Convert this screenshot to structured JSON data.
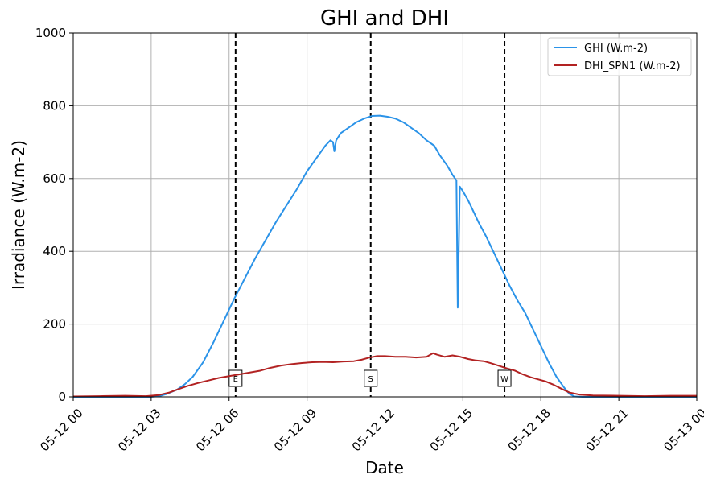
{
  "chart_data": {
    "type": "line",
    "title": "GHI and DHI",
    "xlabel": "Date",
    "ylabel": "Irradiance (W.m-2)",
    "xlim": [
      "05-12 00:00",
      "05-13 00:00"
    ],
    "ylim": [
      0,
      1000
    ],
    "grid": true,
    "legend_position": "top-right",
    "x_ticks": [
      {
        "hour": 0,
        "label": "05-12 00"
      },
      {
        "hour": 3,
        "label": "05-12 03"
      },
      {
        "hour": 6,
        "label": "05-12 06"
      },
      {
        "hour": 9,
        "label": "05-12 09"
      },
      {
        "hour": 12,
        "label": "05-12 12"
      },
      {
        "hour": 15,
        "label": "05-12 15"
      },
      {
        "hour": 18,
        "label": "05-12 18"
      },
      {
        "hour": 21,
        "label": "05-12 21"
      },
      {
        "hour": 24,
        "label": "05-13 00"
      }
    ],
    "y_ticks": [
      0,
      200,
      400,
      600,
      800,
      1000
    ],
    "series": [
      {
        "name": "GHI (W.m-2)",
        "color": "#2b93e8",
        "points": [
          [
            0,
            0
          ],
          [
            3.0,
            0
          ],
          [
            3.3,
            2
          ],
          [
            3.6,
            8
          ],
          [
            4.0,
            20
          ],
          [
            4.3,
            35
          ],
          [
            4.6,
            55
          ],
          [
            5.0,
            95
          ],
          [
            5.4,
            150
          ],
          [
            5.8,
            210
          ],
          [
            6.2,
            270
          ],
          [
            6.6,
            325
          ],
          [
            7.0,
            380
          ],
          [
            7.4,
            430
          ],
          [
            7.8,
            480
          ],
          [
            8.2,
            525
          ],
          [
            8.6,
            570
          ],
          [
            9.0,
            620
          ],
          [
            9.4,
            660
          ],
          [
            9.7,
            690
          ],
          [
            9.9,
            705
          ],
          [
            10.0,
            700
          ],
          [
            10.05,
            675
          ],
          [
            10.12,
            705
          ],
          [
            10.3,
            725
          ],
          [
            10.6,
            740
          ],
          [
            10.9,
            755
          ],
          [
            11.2,
            765
          ],
          [
            11.5,
            772
          ],
          [
            11.8,
            773
          ],
          [
            12.1,
            770
          ],
          [
            12.4,
            765
          ],
          [
            12.7,
            755
          ],
          [
            13.0,
            740
          ],
          [
            13.3,
            725
          ],
          [
            13.6,
            705
          ],
          [
            13.9,
            690
          ],
          [
            14.1,
            665
          ],
          [
            14.4,
            635
          ],
          [
            14.6,
            610
          ],
          [
            14.75,
            595
          ],
          [
            14.8,
            245
          ],
          [
            14.88,
            578
          ],
          [
            15.0,
            565
          ],
          [
            15.2,
            540
          ],
          [
            15.4,
            510
          ],
          [
            15.6,
            480
          ],
          [
            15.9,
            440
          ],
          [
            16.2,
            395
          ],
          [
            16.5,
            350
          ],
          [
            16.8,
            305
          ],
          [
            17.1,
            265
          ],
          [
            17.4,
            230
          ],
          [
            17.7,
            185
          ],
          [
            18.0,
            140
          ],
          [
            18.3,
            95
          ],
          [
            18.6,
            55
          ],
          [
            18.9,
            25
          ],
          [
            19.1,
            8
          ],
          [
            19.3,
            1
          ],
          [
            19.6,
            0
          ],
          [
            24,
            0
          ]
        ]
      },
      {
        "name": "DHI_SPN1 (W.m-2)",
        "color": "#b22222",
        "points": [
          [
            0,
            1
          ],
          [
            1.0,
            2
          ],
          [
            2.0,
            3
          ],
          [
            2.8,
            2
          ],
          [
            3.3,
            5
          ],
          [
            3.7,
            12
          ],
          [
            4.0,
            20
          ],
          [
            4.4,
            30
          ],
          [
            4.8,
            38
          ],
          [
            5.2,
            45
          ],
          [
            5.6,
            52
          ],
          [
            6.0,
            57
          ],
          [
            6.4,
            62
          ],
          [
            6.8,
            67
          ],
          [
            7.2,
            72
          ],
          [
            7.6,
            80
          ],
          [
            8.0,
            86
          ],
          [
            8.4,
            90
          ],
          [
            8.8,
            93
          ],
          [
            9.2,
            95
          ],
          [
            9.6,
            96
          ],
          [
            10.0,
            95
          ],
          [
            10.4,
            97
          ],
          [
            10.8,
            98
          ],
          [
            11.1,
            102
          ],
          [
            11.4,
            108
          ],
          [
            11.7,
            112
          ],
          [
            12.0,
            112
          ],
          [
            12.4,
            110
          ],
          [
            12.8,
            110
          ],
          [
            13.2,
            108
          ],
          [
            13.6,
            110
          ],
          [
            13.85,
            120
          ],
          [
            14.0,
            116
          ],
          [
            14.3,
            110
          ],
          [
            14.6,
            114
          ],
          [
            14.9,
            110
          ],
          [
            15.2,
            104
          ],
          [
            15.5,
            100
          ],
          [
            15.8,
            98
          ],
          [
            16.1,
            92
          ],
          [
            16.4,
            85
          ],
          [
            16.7,
            78
          ],
          [
            17.0,
            72
          ],
          [
            17.3,
            62
          ],
          [
            17.6,
            54
          ],
          [
            17.9,
            48
          ],
          [
            18.2,
            42
          ],
          [
            18.5,
            33
          ],
          [
            18.8,
            22
          ],
          [
            19.1,
            12
          ],
          [
            19.5,
            6
          ],
          [
            20.0,
            4
          ],
          [
            21.0,
            3
          ],
          [
            22.0,
            2
          ],
          [
            23.0,
            3
          ],
          [
            24,
            3
          ]
        ]
      }
    ],
    "markers": [
      {
        "hour": 6.25,
        "label": "E"
      },
      {
        "hour": 11.45,
        "label": "S"
      },
      {
        "hour": 16.6,
        "label": "W"
      }
    ]
  }
}
